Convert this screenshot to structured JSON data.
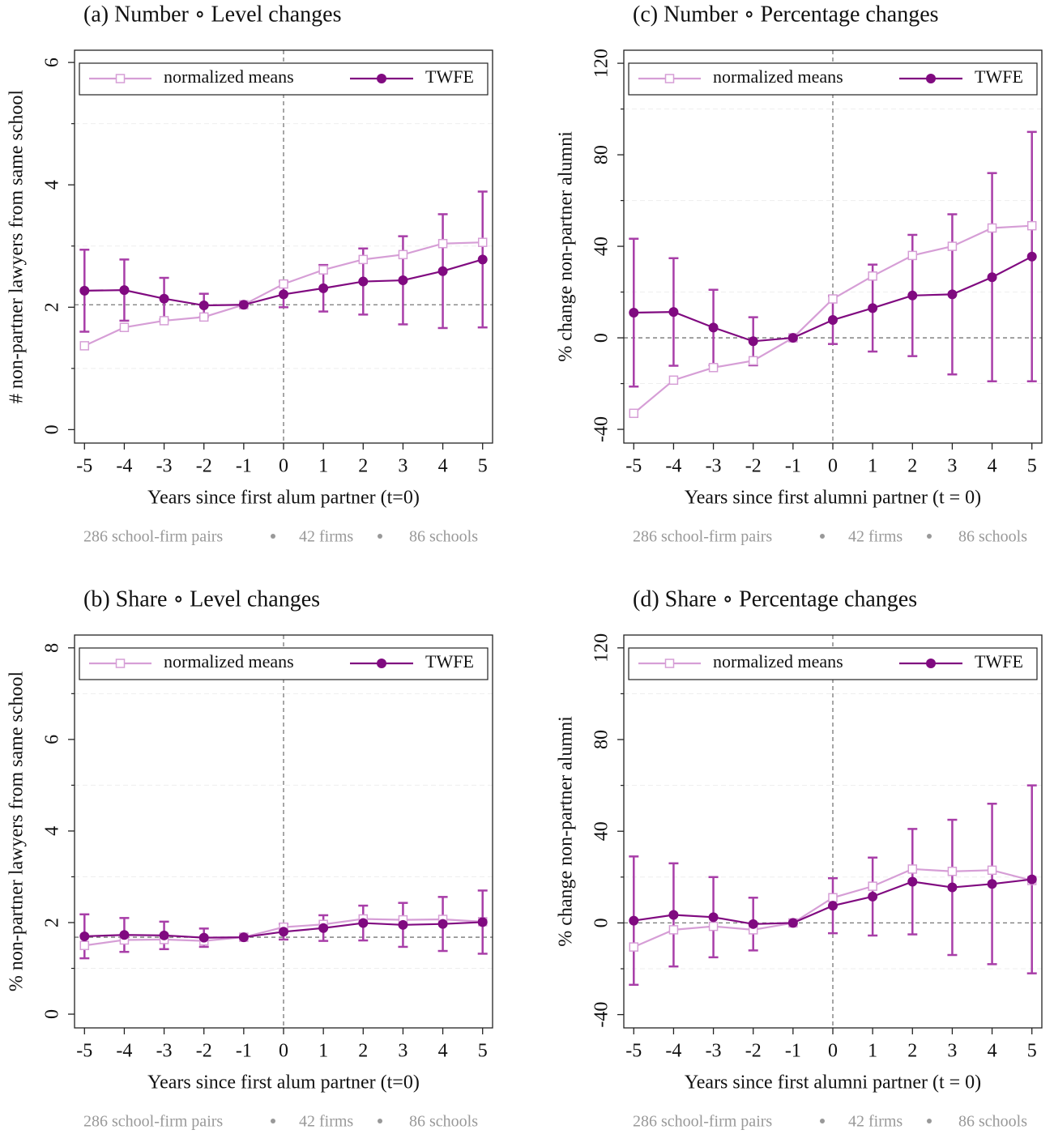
{
  "chart_data": [
    {
      "type": "line",
      "title": "(a) Number ∘ Level changes",
      "xlabel": "Years since first alum partner (t=0)",
      "ylabel": "# non-partner lawyers from same school",
      "notes": [
        "286 school-firm pairs",
        "42 firms",
        "86 schools"
      ],
      "x": [
        -5,
        -4,
        -3,
        -2,
        -1,
        0,
        1,
        2,
        3,
        4,
        5
      ],
      "xlim": [
        -5.25,
        5.25
      ],
      "xticks": [
        -5,
        -4,
        -3,
        -2,
        -1,
        0,
        1,
        2,
        3,
        4,
        5
      ],
      "ylim": [
        -0.22,
        6.2
      ],
      "yticks": [
        0,
        2,
        4,
        6
      ],
      "minor_yticks": [
        1,
        3,
        5
      ],
      "grid": true,
      "hline": 2.04,
      "vline": 0,
      "legend": "top",
      "series": [
        {
          "name": "normalized means",
          "color": "#d69ed6",
          "marker": "square",
          "values": [
            1.37,
            1.67,
            1.78,
            1.84,
            2.04,
            2.38,
            2.61,
            2.78,
            2.86,
            3.04,
            3.06
          ]
        },
        {
          "name": "TWFE",
          "color": "#800a80",
          "marker": "circle",
          "error_color": "#a83ea8",
          "values": [
            2.27,
            2.28,
            2.14,
            2.03,
            2.04,
            2.21,
            2.31,
            2.42,
            2.44,
            2.59,
            2.78
          ],
          "errors": [
            0.67,
            0.5,
            0.34,
            0.19,
            null,
            0.21,
            0.38,
            0.54,
            0.72,
            0.93,
            1.11
          ]
        }
      ]
    },
    {
      "type": "line",
      "title": "(c) Number ∘ Percentage changes",
      "xlabel": "Years since first alumni partner (t = 0)",
      "ylabel": "% change non-partner alumni",
      "notes": [
        "286 school-firm pairs",
        "42 firms",
        "86 schools"
      ],
      "x": [
        -5,
        -4,
        -3,
        -2,
        -1,
        0,
        1,
        2,
        3,
        4,
        5
      ],
      "xlim": [
        -5.25,
        5.25
      ],
      "xticks": [
        -5,
        -4,
        -3,
        -2,
        -1,
        0,
        1,
        2,
        3,
        4,
        5
      ],
      "ylim": [
        -46,
        125.7
      ],
      "yticks": [
        -40,
        0,
        40,
        80,
        120
      ],
      "minor_yticks": [
        -20,
        20,
        60,
        100
      ],
      "grid": true,
      "hline": 0,
      "vline": 0,
      "legend": "top",
      "series": [
        {
          "name": "normalized means",
          "color": "#d69ed6",
          "marker": "square",
          "values": [
            -33,
            -18.5,
            -13,
            -10,
            0,
            17,
            27,
            36,
            40,
            48,
            49
          ]
        },
        {
          "name": "TWFE",
          "color": "#800a80",
          "marker": "circle",
          "error_color": "#a83ea8",
          "values": [
            11,
            11.3,
            4.5,
            -1.5,
            0,
            7.8,
            13,
            18.5,
            19,
            26.5,
            35.5
          ],
          "errors": [
            32.3,
            23.5,
            16.5,
            10.5,
            null,
            10.5,
            19,
            26.5,
            35,
            45.5,
            54.5
          ]
        }
      ]
    },
    {
      "type": "line",
      "title": "(b) Share ∘ Level changes",
      "xlabel": "Years since first alum partner (t=0)",
      "ylabel": "% non-partner lawyers from same school",
      "notes": [
        "286 school-firm pairs",
        "42 firms",
        "86 schools"
      ],
      "x": [
        -5,
        -4,
        -3,
        -2,
        -1,
        0,
        1,
        2,
        3,
        4,
        5
      ],
      "xlim": [
        -5.25,
        5.25
      ],
      "xticks": [
        -5,
        -4,
        -3,
        -2,
        -1,
        0,
        1,
        2,
        3,
        4,
        5
      ],
      "ylim": [
        -0.3,
        8.28
      ],
      "yticks": [
        0,
        2,
        4,
        6,
        8
      ],
      "minor_yticks": [
        1,
        3,
        5,
        7
      ],
      "grid": true,
      "hline": 1.68,
      "vline": 0,
      "legend": "top",
      "series": [
        {
          "name": "normalized means",
          "color": "#d69ed6",
          "marker": "square",
          "values": [
            1.5,
            1.62,
            1.63,
            1.6,
            1.68,
            1.9,
            1.96,
            2.08,
            2.06,
            2.07,
            2.02
          ]
        },
        {
          "name": "TWFE",
          "color": "#800a80",
          "marker": "circle",
          "error_color": "#a83ea8",
          "values": [
            1.7,
            1.73,
            1.72,
            1.67,
            1.68,
            1.8,
            1.88,
            1.99,
            1.95,
            1.97,
            2.01
          ],
          "errors": [
            0.48,
            0.37,
            0.3,
            0.2,
            null,
            0.17,
            0.28,
            0.38,
            0.48,
            0.59,
            0.69
          ]
        }
      ]
    },
    {
      "type": "line",
      "title": "(d) Share ∘ Percentage changes",
      "xlabel": "Years since first alumni partner (t = 0)",
      "ylabel": "% change non-partner alumni",
      "notes": [
        "286 school-firm pairs",
        "42 firms",
        "86 schools"
      ],
      "x": [
        -5,
        -4,
        -3,
        -2,
        -1,
        0,
        1,
        2,
        3,
        4,
        5
      ],
      "xlim": [
        -5.25,
        5.25
      ],
      "xticks": [
        -5,
        -4,
        -3,
        -2,
        -1,
        0,
        1,
        2,
        3,
        4,
        5
      ],
      "ylim": [
        -45.8,
        125.6
      ],
      "yticks": [
        -40,
        0,
        40,
        80,
        120
      ],
      "minor_yticks": [
        -20,
        20,
        60,
        100
      ],
      "grid": true,
      "hline": 0,
      "vline": 0,
      "legend": "top",
      "series": [
        {
          "name": "normalized means",
          "color": "#d69ed6",
          "marker": "square",
          "values": [
            -10.5,
            -3,
            -1.5,
            -3,
            0,
            11,
            16,
            23.5,
            22.5,
            23,
            18.5
          ]
        },
        {
          "name": "TWFE",
          "color": "#800a80",
          "marker": "circle",
          "error_color": "#a83ea8",
          "values": [
            1,
            3.5,
            2.5,
            -0.5,
            0,
            7.5,
            11.5,
            18,
            15.5,
            17,
            19
          ],
          "errors": [
            28,
            22.5,
            17.5,
            11.5,
            null,
            12,
            17,
            23,
            29.5,
            35,
            41
          ]
        }
      ]
    }
  ]
}
